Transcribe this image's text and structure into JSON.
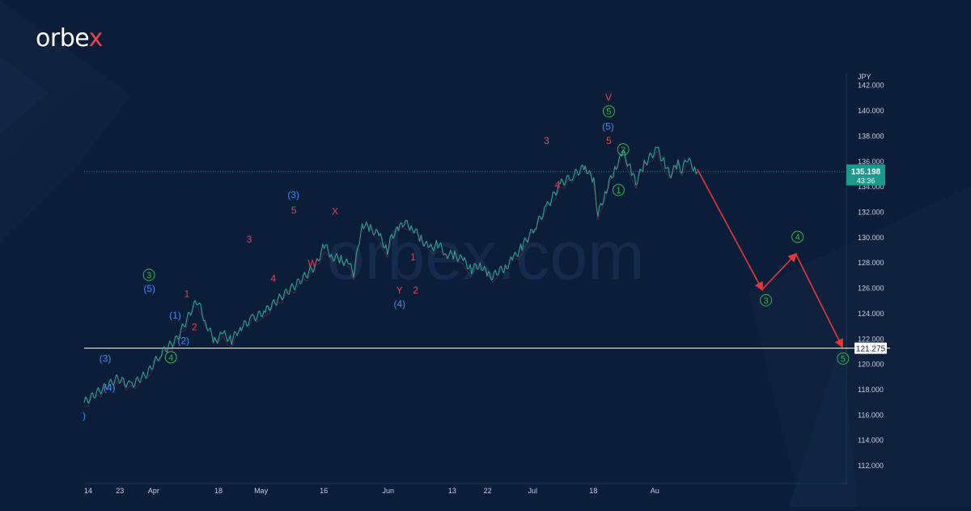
{
  "brand": {
    "logo_text": "orbex",
    "watermark": "orbex.com",
    "accent": "#e8434d"
  },
  "chart_data": {
    "type": "line",
    "instrument_unit": "JPY",
    "y_axis": {
      "ticks": [
        "112.000",
        "114.000",
        "116.000",
        "118.000",
        "120.000",
        "122.000",
        "124.000",
        "126.000",
        "128.000",
        "130.000",
        "132.000",
        "134.000",
        "136.000",
        "138.000",
        "140.000",
        "142.000"
      ],
      "range": [
        110.6,
        143.0
      ]
    },
    "x_axis": {
      "tick_labels": [
        "14",
        "23",
        "Apr",
        "18",
        "May",
        "16",
        "Jun",
        "13",
        "22",
        "Jul",
        "18",
        "Au"
      ]
    },
    "current_price": {
      "label": "135.198",
      "countdown": "43:36",
      "value": 135.198,
      "color": "#1a9a8a"
    },
    "support_level": {
      "label": "121.275",
      "value": 121.275
    },
    "price_series": [
      [
        0,
        117.0
      ],
      [
        4,
        118.0
      ],
      [
        8,
        118.9
      ],
      [
        11,
        118.3
      ],
      [
        15,
        119.3
      ],
      [
        18,
        120.8
      ],
      [
        22,
        122.0
      ],
      [
        26,
        124.6
      ],
      [
        27,
        125.0
      ],
      [
        29,
        123.2
      ],
      [
        31,
        121.8
      ],
      [
        33,
        122.4
      ],
      [
        35,
        121.9
      ],
      [
        37,
        122.9
      ],
      [
        40,
        123.6
      ],
      [
        43,
        124.2
      ],
      [
        47,
        125.4
      ],
      [
        51,
        126.5
      ],
      [
        55,
        127.8
      ],
      [
        57,
        129.4
      ],
      [
        59,
        128.5
      ],
      [
        61,
        128.3
      ],
      [
        63,
        127.8
      ],
      [
        64,
        127.2
      ],
      [
        66,
        131.1
      ],
      [
        68,
        130.7
      ],
      [
        70,
        130.2
      ],
      [
        72,
        129.0
      ],
      [
        73,
        130.1
      ],
      [
        75,
        130.8
      ],
      [
        76,
        131.2
      ],
      [
        78,
        130.8
      ],
      [
        80,
        129.9
      ],
      [
        82,
        129.1
      ],
      [
        84,
        129.5
      ],
      [
        86,
        128.7
      ],
      [
        88,
        128.6
      ],
      [
        90,
        128.2
      ],
      [
        92,
        127.5
      ],
      [
        94,
        127.9
      ],
      [
        96,
        127.0
      ],
      [
        97,
        126.9
      ],
      [
        98,
        127.3
      ],
      [
        100,
        127.6
      ],
      [
        102,
        128.4
      ],
      [
        104,
        129.3
      ],
      [
        107,
        130.8
      ],
      [
        110,
        132.5
      ],
      [
        113,
        134.2
      ],
      [
        116,
        134.9
      ],
      [
        119,
        135.6
      ],
      [
        121,
        134.4
      ],
      [
        122,
        131.8
      ],
      [
        124,
        133.8
      ],
      [
        126,
        135.4
      ],
      [
        128,
        136.7
      ],
      [
        130,
        135.2
      ],
      [
        131,
        134.3
      ],
      [
        133,
        135.8
      ],
      [
        136,
        137.0
      ],
      [
        138,
        135.8
      ],
      [
        139,
        134.9
      ],
      [
        141,
        135.8
      ],
      [
        142,
        135.2
      ],
      [
        143,
        136.3
      ],
      [
        145,
        135.4
      ],
      [
        145.6,
        135.198
      ]
    ],
    "projection_series": [
      {
        "name": "",
        "color": "#e03a3a",
        "points": [
          [
            145.6,
            135.4
          ],
          [
            161,
            125.9
          ],
          [
            169,
            128.7
          ],
          [
            180,
            121.4
          ]
        ]
      }
    ],
    "wave_labels": [
      {
        "text": "(4)",
        "x": 6,
        "y": 117.9,
        "color": "#3d8ef2",
        "circled": false
      },
      {
        "text": "(3)",
        "x": 5,
        "y": 120.2,
        "color": "#3d8ef2",
        "circled": false
      },
      {
        "text": ")",
        "x": 0,
        "y": 115.7,
        "color": "#3d8ef2",
        "circled": false
      },
      {
        "text": "3",
        "x": 15.4,
        "y": 126.8,
        "color": "#34b34a",
        "circled": true
      },
      {
        "text": "(5)",
        "x": 15.5,
        "y": 125.7,
        "color": "#3d8ef2",
        "circled": false
      },
      {
        "text": "4",
        "x": 20.6,
        "y": 120.3,
        "color": "#34b34a",
        "circled": true
      },
      {
        "text": "(2)",
        "x": 23.6,
        "y": 121.6,
        "color": "#3d8ef2",
        "circled": false
      },
      {
        "text": "(1)",
        "x": 21.6,
        "y": 123.6,
        "color": "#3d8ef2",
        "circled": false
      },
      {
        "text": "1",
        "x": 24.4,
        "y": 125.3,
        "color": "#e8434d",
        "circled": false
      },
      {
        "text": "2",
        "x": 26.2,
        "y": 122.7,
        "color": "#e8434d",
        "circled": false
      },
      {
        "text": "3",
        "x": 39.2,
        "y": 129.6,
        "color": "#e8434d",
        "circled": false
      },
      {
        "text": "4",
        "x": 44.9,
        "y": 126.5,
        "color": "#e8434d",
        "circled": false
      },
      {
        "text": "(3)",
        "x": 49.7,
        "y": 133.1,
        "color": "#3d8ef2",
        "circled": false
      },
      {
        "text": "5",
        "x": 49.8,
        "y": 131.9,
        "color": "#e8434d",
        "circled": false
      },
      {
        "text": "W",
        "x": 54.2,
        "y": 127.7,
        "color": "#e8434d",
        "circled": false
      },
      {
        "text": "X",
        "x": 59.6,
        "y": 131.8,
        "color": "#e8434d",
        "circled": false
      },
      {
        "text": "1",
        "x": 78.1,
        "y": 128.2,
        "color": "#e8434d",
        "circled": false
      },
      {
        "text": "Y",
        "x": 74.9,
        "y": 125.6,
        "color": "#e8434d",
        "circled": false
      },
      {
        "text": "2",
        "x": 78.7,
        "y": 125.6,
        "color": "#e8434d",
        "circled": false
      },
      {
        "text": "(4)",
        "x": 74.9,
        "y": 124.5,
        "color": "#3d8ef2",
        "circled": false
      },
      {
        "text": "3",
        "x": 109.8,
        "y": 137.4,
        "color": "#e8434d",
        "circled": false
      },
      {
        "text": "4",
        "x": 112.4,
        "y": 133.9,
        "color": "#e8434d",
        "circled": false
      },
      {
        "text": "V",
        "x": 124.5,
        "y": 140.8,
        "color": "#e8434d",
        "circled": false
      },
      {
        "text": "5",
        "x": 124.6,
        "y": 139.7,
        "color": "#34b34a",
        "circled": true
      },
      {
        "text": "(5)",
        "x": 124.4,
        "y": 138.5,
        "color": "#3d8ef2",
        "circled": false
      },
      {
        "text": "5",
        "x": 124.6,
        "y": 137.4,
        "color": "#e8434d",
        "circled": false
      },
      {
        "text": "2",
        "x": 128.0,
        "y": 136.7,
        "color": "#34b34a",
        "circled": true
      },
      {
        "text": "1",
        "x": 126.9,
        "y": 133.5,
        "color": "#34b34a",
        "circled": true
      },
      {
        "text": "3",
        "x": 161.9,
        "y": 124.8,
        "color": "#34b34a",
        "circled": true
      },
      {
        "text": "4",
        "x": 169.4,
        "y": 129.8,
        "color": "#34b34a",
        "circled": true
      },
      {
        "text": "5",
        "x": 180.2,
        "y": 120.2,
        "color": "#34b34a",
        "circled": true
      }
    ],
    "grid": false
  }
}
